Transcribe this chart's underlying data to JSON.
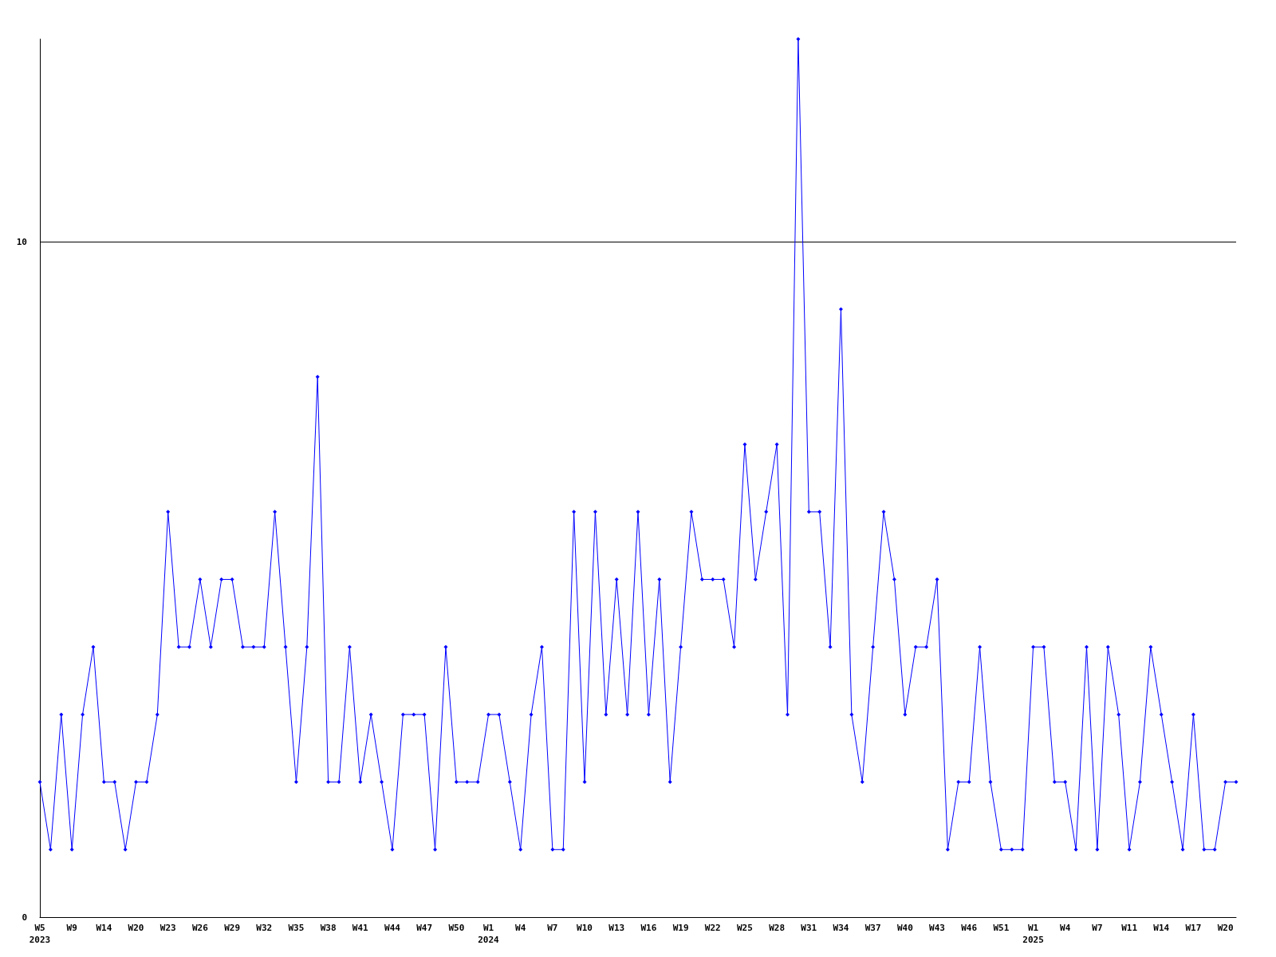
{
  "chart_data": {
    "type": "line",
    "categories": [
      "W5\n2023",
      null,
      null,
      "W9",
      null,
      null,
      "W14",
      null,
      null,
      "W20",
      null,
      null,
      "W23",
      null,
      null,
      "W26",
      null,
      null,
      "W29",
      null,
      null,
      "W32",
      null,
      null,
      "W35",
      null,
      null,
      "W38",
      null,
      null,
      "W41",
      null,
      null,
      "W44",
      null,
      null,
      "W47",
      null,
      null,
      "W50",
      null,
      null,
      "W1\n2024",
      null,
      null,
      "W4",
      null,
      null,
      "W7",
      null,
      null,
      "W10",
      null,
      null,
      "W13",
      null,
      null,
      "W16",
      null,
      null,
      "W19",
      null,
      null,
      "W22",
      null,
      null,
      "W25",
      null,
      null,
      "W28",
      null,
      null,
      "W31",
      null,
      null,
      "W34",
      null,
      null,
      "W37",
      null,
      null,
      "W40",
      null,
      null,
      "W43",
      null,
      null,
      "W46",
      null,
      null,
      "W51",
      null,
      null,
      "W1\n2025",
      null,
      null,
      "W4",
      null,
      null,
      "W7",
      null,
      null,
      "W11",
      null,
      null,
      "W14",
      null,
      null,
      "W17",
      null,
      null,
      "W20",
      null
    ],
    "series": [
      {
        "color": "#0000ff",
        "values": [
          2,
          1,
          3,
          1,
          3,
          4,
          2,
          2,
          1,
          2,
          2,
          3,
          6,
          4,
          4,
          5,
          4,
          5,
          5,
          4,
          4,
          4,
          6,
          4,
          2,
          4,
          8,
          2,
          2,
          4,
          2,
          3,
          2,
          1,
          3,
          3,
          3,
          1,
          4,
          2,
          2,
          2,
          3,
          3,
          2,
          1,
          3,
          4,
          1,
          1,
          6,
          2,
          6,
          3,
          5,
          3,
          6,
          3,
          5,
          2,
          4,
          6,
          5,
          5,
          5,
          4,
          7,
          5,
          6,
          7,
          3,
          13,
          6,
          6,
          4,
          9,
          3,
          2,
          4,
          6,
          5,
          3,
          4,
          4,
          5,
          1,
          2,
          2,
          4,
          2,
          1,
          1,
          1,
          4,
          4,
          2,
          2,
          1,
          4,
          1,
          4,
          3,
          1,
          2,
          4,
          3,
          2,
          1,
          3,
          1,
          1,
          2,
          2
        ]
      }
    ],
    "ylim": [
      0,
      13
    ],
    "yticks": [
      0,
      10
    ],
    "grid": "y",
    "marker": "diamond",
    "line_style": "solid"
  }
}
